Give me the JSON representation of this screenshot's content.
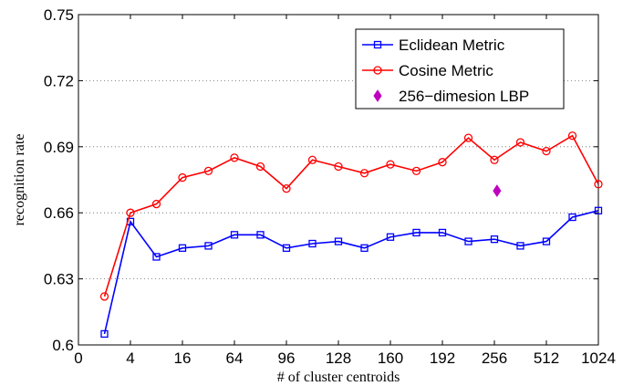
{
  "chart_data": {
    "type": "line",
    "title": "",
    "xlabel": "# of cluster centroids",
    "ylabel": "recognition rate",
    "x_ticks": [
      "0",
      "4",
      "16",
      "64",
      "96",
      "128",
      "160",
      "192",
      "256",
      "512",
      "1024"
    ],
    "x_tick_positions": [
      0,
      1,
      2,
      3,
      4,
      5,
      6,
      7,
      8,
      9,
      10
    ],
    "xlim": [
      0,
      10
    ],
    "ylim": [
      0.6,
      0.75
    ],
    "y_ticks": [
      "0.6",
      "0.63",
      "0.66",
      "0.69",
      "0.72",
      "0.75"
    ],
    "y_tick_values": [
      0.6,
      0.63,
      0.66,
      0.69,
      0.72,
      0.75
    ],
    "grid": "horizontal dotted",
    "legend_position": "top-right",
    "x": [
      0.5,
      1,
      1.5,
      2,
      2.5,
      3,
      3.5,
      4,
      4.5,
      5,
      5.5,
      6,
      6.5,
      7,
      7.5,
      8,
      8.5,
      9,
      9.5,
      10
    ],
    "series": [
      {
        "name": "Eclidean Metric",
        "color": "#0000ff",
        "marker": "square",
        "values": [
          0.605,
          0.656,
          0.64,
          0.644,
          0.645,
          0.65,
          0.65,
          0.644,
          0.646,
          0.647,
          0.644,
          0.649,
          0.651,
          0.651,
          0.647,
          0.648,
          0.645,
          0.647,
          0.658,
          0.661
        ]
      },
      {
        "name": "Cosine Metric",
        "color": "#ff0000",
        "marker": "circle",
        "values": [
          0.622,
          0.66,
          0.664,
          0.676,
          0.679,
          0.685,
          0.681,
          0.671,
          0.684,
          0.681,
          0.678,
          0.682,
          0.679,
          0.683,
          0.694,
          0.684,
          0.692,
          0.688,
          0.695,
          0.673
        ]
      },
      {
        "name": "256−dimesion LBP",
        "color": "#bf00bf",
        "marker": "diamond",
        "points": [
          {
            "x": 8.05,
            "y": 0.67
          }
        ]
      }
    ]
  }
}
